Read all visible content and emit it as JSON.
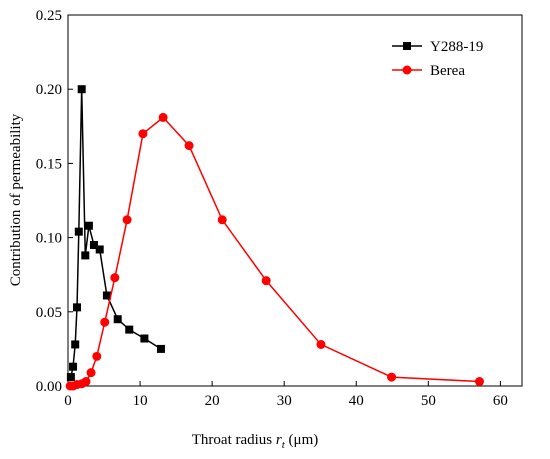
{
  "chart_data": {
    "type": "line",
    "xlabel": {
      "text": "Throat radius ",
      "var": "r",
      "sub": "t",
      "unit": " (μm)"
    },
    "ylabel": "Contribution of permeability",
    "xlim": [
      0,
      63
    ],
    "ylim": [
      0,
      0.25
    ],
    "xticks": [
      0,
      10,
      20,
      30,
      40,
      50,
      60
    ],
    "yticks": [
      {
        "value": 0,
        "label": "0.00"
      },
      {
        "value": 0.05,
        "label": "0.05"
      },
      {
        "value": 0.1,
        "label": "0.10"
      },
      {
        "value": 0.15,
        "label": "0.15"
      },
      {
        "value": 0.2,
        "label": "0.20"
      },
      {
        "value": 0.25,
        "label": "0.25"
      }
    ],
    "legend": "upper right",
    "series": [
      {
        "name": "Y288-19",
        "color": "#000000",
        "marker": "square",
        "x": [
          0.4,
          0.7,
          1.0,
          1.25,
          1.5,
          1.9,
          2.4,
          2.9,
          3.6,
          4.4,
          5.4,
          6.9,
          8.5,
          10.6,
          12.9
        ],
        "values": [
          0.006,
          0.013,
          0.028,
          0.053,
          0.104,
          0.2,
          0.088,
          0.108,
          0.095,
          0.092,
          0.061,
          0.045,
          0.038,
          0.032,
          0.025
        ]
      },
      {
        "name": "Berea",
        "color": "#ff0000",
        "marker": "circle",
        "x": [
          0.3,
          0.7,
          1.25,
          1.9,
          2.5,
          3.2,
          4.0,
          5.1,
          6.5,
          8.2,
          10.4,
          13.2,
          16.8,
          21.4,
          27.5,
          35.1,
          44.9,
          57.1
        ],
        "values": [
          0.0,
          0.0,
          0.001,
          0.0015,
          0.003,
          0.009,
          0.02,
          0.043,
          0.073,
          0.112,
          0.17,
          0.181,
          0.162,
          0.112,
          0.071,
          0.028,
          0.006,
          0.003
        ]
      }
    ]
  }
}
